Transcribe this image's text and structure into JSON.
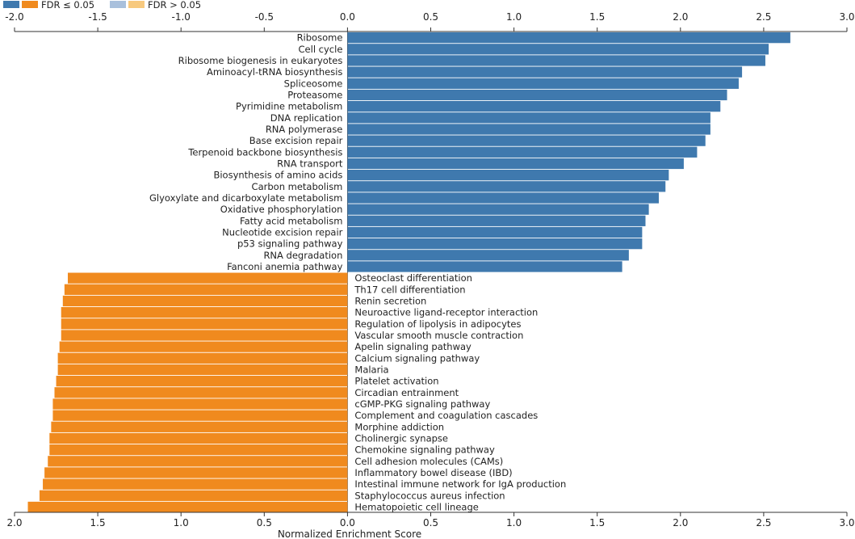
{
  "chart_data": {
    "type": "bar",
    "orientation": "horizontal",
    "xlabel": "Normalized Enrichment Score",
    "xlim": [
      -2.0,
      3.0
    ],
    "ticks": [
      -2.0,
      -1.5,
      -1.0,
      -0.5,
      0.0,
      0.5,
      1.0,
      1.5,
      2.0,
      2.5,
      3.0
    ],
    "tick_labels_top": [
      "-2.0",
      "-1.5",
      "-1.0",
      "-0.5",
      "0.0",
      "0.5",
      "1.0",
      "1.5",
      "2.0",
      "2.5",
      "3.0"
    ],
    "tick_labels_bottom": [
      "2.0",
      "1.5",
      "1.0",
      "0.5",
      "0.0",
      "0.5",
      "1.0",
      "1.5",
      "2.0",
      "2.5",
      "3.0"
    ],
    "legend_position": "top-left",
    "legend": [
      {
        "label": "",
        "color": "#3F79AE"
      },
      {
        "label": "FDR ≤ 0.05",
        "color": "#F08A1E"
      },
      {
        "label": "",
        "color": "#A9C0DC"
      },
      {
        "label": "FDR > 0.05",
        "color": "#F7C97E"
      }
    ],
    "colors": {
      "up": "#3F79AE",
      "down": "#F08A1E"
    },
    "categories": [
      "Ribosome",
      "Cell cycle",
      "Ribosome biogenesis in eukaryotes",
      "Aminoacyl-tRNA biosynthesis",
      "Spliceosome",
      "Proteasome",
      "Pyrimidine metabolism",
      "DNA replication",
      "RNA polymerase",
      "Base excision repair",
      "Terpenoid backbone biosynthesis",
      "RNA transport",
      "Biosynthesis of amino acids",
      "Carbon metabolism",
      "Glyoxylate and dicarboxylate metabolism",
      "Oxidative phosphorylation",
      "Fatty acid metabolism",
      "Nucleotide excision repair",
      "p53 signaling pathway",
      "RNA degradation",
      "Fanconi anemia pathway",
      "Osteoclast differentiation",
      "Th17 cell differentiation",
      "Renin secretion",
      "Neuroactive ligand-receptor interaction",
      "Regulation of lipolysis in adipocytes",
      "Vascular smooth muscle contraction",
      "Apelin signaling pathway",
      "Calcium signaling pathway",
      "Malaria",
      "Platelet activation",
      "Circadian entrainment",
      "cGMP-PKG signaling pathway",
      "Complement and coagulation cascades",
      "Morphine addiction",
      "Cholinergic synapse",
      "Chemokine signaling pathway",
      "Cell adhesion molecules (CAMs)",
      "Inflammatory bowel disease (IBD)",
      "Intestinal immune network for IgA production",
      "Staphylococcus aureus infection",
      "Hematopoietic cell lineage"
    ],
    "values": [
      2.66,
      2.53,
      2.51,
      2.37,
      2.35,
      2.28,
      2.24,
      2.18,
      2.18,
      2.15,
      2.1,
      2.02,
      1.93,
      1.91,
      1.87,
      1.81,
      1.79,
      1.77,
      1.77,
      1.69,
      1.65,
      -1.68,
      -1.7,
      -1.71,
      -1.72,
      -1.72,
      -1.72,
      -1.73,
      -1.74,
      -1.74,
      -1.75,
      -1.76,
      -1.77,
      -1.77,
      -1.78,
      -1.79,
      -1.79,
      -1.8,
      -1.82,
      -1.83,
      -1.85,
      -1.92
    ]
  }
}
